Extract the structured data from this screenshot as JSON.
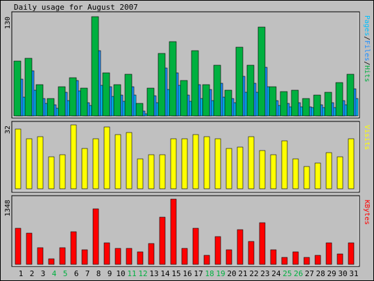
{
  "chart_data": {
    "type": "bar",
    "title": "Daily usage for August 2007",
    "categories": [
      "1",
      "2",
      "3",
      "4",
      "5",
      "6",
      "7",
      "8",
      "9",
      "10",
      "11",
      "12",
      "13",
      "14",
      "15",
      "16",
      "17",
      "18",
      "19",
      "20",
      "21",
      "22",
      "23",
      "24",
      "25",
      "26",
      "27",
      "28",
      "29",
      "30",
      "31"
    ],
    "weekend_days": [
      "4",
      "5",
      "11",
      "12",
      "18",
      "19",
      "25",
      "26"
    ],
    "panels": [
      {
        "id": "hits",
        "ymax_label": "130",
        "ymax": 130,
        "series": [
          {
            "name": "Pages",
            "color": "#00c0ff",
            "values": [
              24,
              33,
              16,
              10,
              20,
              32,
              13,
              39,
              25,
              19,
              27,
              3,
              17,
              34,
              39,
              19,
              22,
              20,
              24,
              17,
              30,
              30,
              37,
              13,
              12,
              12,
              11,
              11,
              11,
              14,
              22
            ]
          },
          {
            "name": "Files",
            "color": "#1e8fff",
            "values": [
              47,
              58,
              22,
              14,
              30,
              45,
              17,
              84,
              37,
              27,
              37,
              6,
              26,
              61,
              55,
              27,
              40,
              34,
              42,
              22,
              51,
              42,
              62,
              20,
              16,
              17,
              12,
              14,
              17,
              20,
              35
            ]
          },
          {
            "name": "Hits",
            "color": "#00b040",
            "values": [
              70,
              74,
              40,
              22,
              37,
              49,
              36,
              127,
              55,
              40,
              53,
              16,
              36,
              80,
              95,
              45,
              84,
              40,
              65,
              33,
              88,
              65,
              114,
              37,
              31,
              33,
              22,
              27,
              30,
              43,
              53
            ]
          }
        ],
        "legend": [
          "Pages",
          "/",
          "Files",
          "/",
          "Hits"
        ]
      },
      {
        "id": "visits",
        "ymax_label": "32",
        "ymax": 32,
        "series": [
          {
            "name": "Visits",
            "color": "#ffff00",
            "values": [
              30,
              25,
              26,
              16,
              17,
              32,
              20,
              25,
              31,
              27,
              28,
              15,
              17,
              17,
              25,
              25,
              27,
              26,
              25,
              20,
              21,
              26,
              19,
              17,
              24,
              15,
              11,
              13,
              18,
              16,
              25
            ]
          }
        ],
        "legend": [
          "Visits"
        ]
      },
      {
        "id": "kbytes",
        "ymax_label": "1348",
        "ymax": 1348,
        "series": [
          {
            "name": "KBytes",
            "color": "#ff0000",
            "values": [
              740,
              640,
              350,
              110,
              350,
              680,
              300,
              1150,
              440,
              330,
              330,
              260,
              430,
              970,
              1348,
              330,
              740,
              180,
              580,
              300,
              720,
              480,
              860,
              300,
              140,
              260,
              150,
              180,
              450,
              210,
              450
            ]
          }
        ],
        "legend": [
          "KBytes"
        ]
      }
    ]
  }
}
